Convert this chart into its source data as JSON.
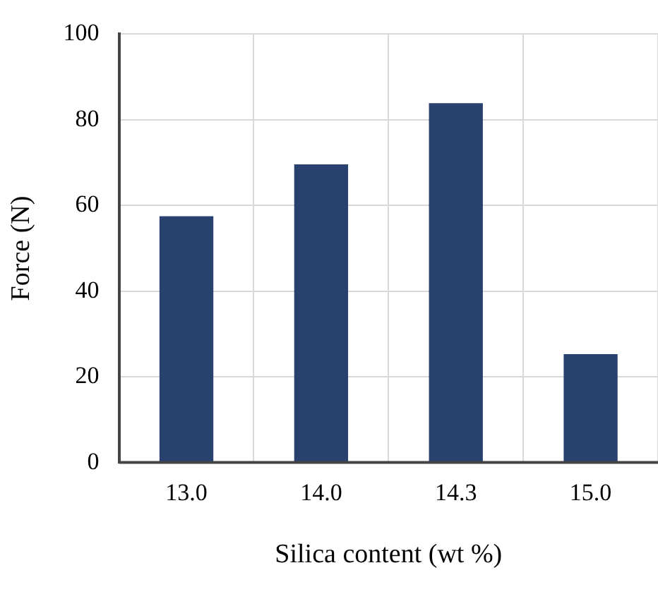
{
  "chart_data": {
    "type": "bar",
    "xlabel": "Silica content (wt %)",
    "ylabel": "Force (N)",
    "categories": [
      "13.0",
      "14.0",
      "14.3",
      "15.0"
    ],
    "values": [
      57.5,
      69.6,
      83.9,
      25.3
    ],
    "color": "#29416e",
    "ylim": [
      0,
      100
    ],
    "yticks": [
      0,
      20,
      40,
      60,
      80,
      100
    ],
    "grid": true
  }
}
